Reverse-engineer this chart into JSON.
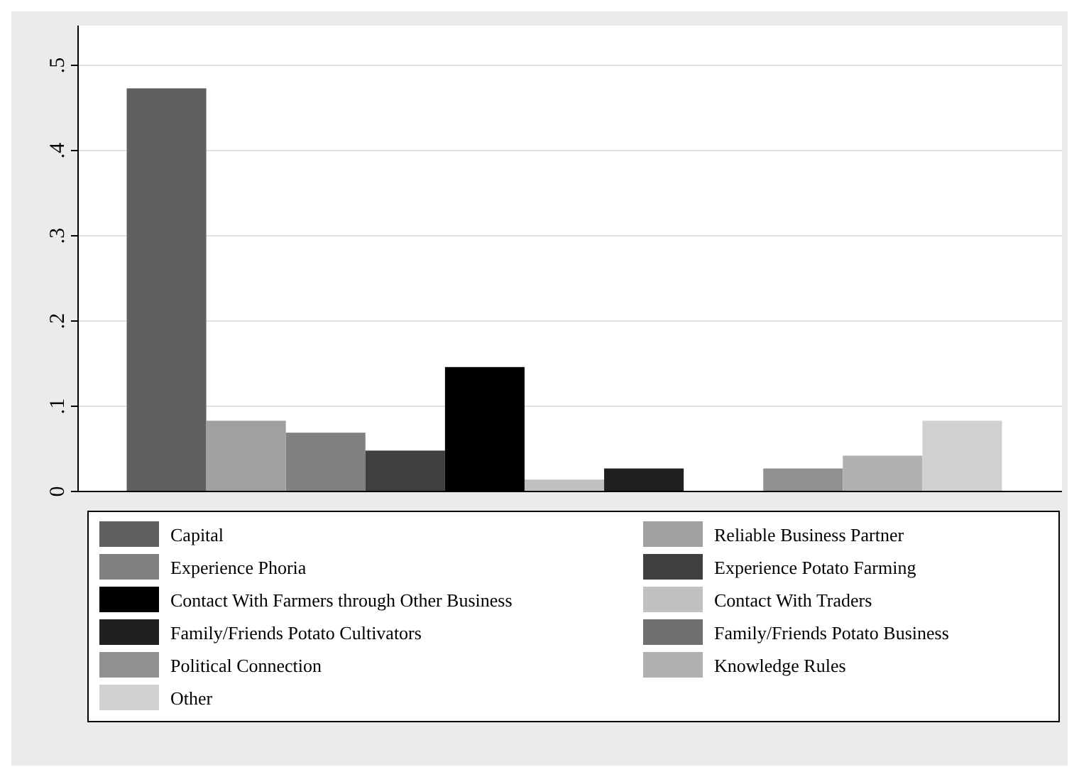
{
  "chart_data": {
    "type": "bar",
    "categories": [
      null
    ],
    "series": [
      {
        "name": "Capital",
        "color": "#606060",
        "values": [
          0.473
        ]
      },
      {
        "name": "Reliable Business Partner",
        "color": "#a0a0a0",
        "values": [
          0.083
        ]
      },
      {
        "name": "Experience Phoria",
        "color": "#808080",
        "values": [
          0.069
        ]
      },
      {
        "name": "Experience Potato Farming",
        "color": "#404040",
        "values": [
          0.048
        ]
      },
      {
        "name": "Contact With Farmers through Other Business",
        "color": "#000000",
        "values": [
          0.146
        ]
      },
      {
        "name": "Contact With Traders",
        "color": "#c0c0c0",
        "values": [
          0.014
        ]
      },
      {
        "name": "Family/Friends Potato Cultivators",
        "color": "#202020",
        "values": [
          0.027
        ]
      },
      {
        "name": "Family/Friends Potato Business",
        "color": "#707070",
        "values": [
          0
        ]
      },
      {
        "name": "Political Connection",
        "color": "#909090",
        "values": [
          0.027
        ]
      },
      {
        "name": "Knowledge Rules",
        "color": "#b0b0b0",
        "values": [
          0.042
        ]
      },
      {
        "name": "Other",
        "color": "#d0d0d0",
        "values": [
          0.083
        ]
      }
    ],
    "ylim": [
      0,
      0.5
    ],
    "yticks": [
      {
        "value": 0,
        "label": "0"
      },
      {
        "value": 0.1,
        "label": ".1"
      },
      {
        "value": 0.2,
        "label": ".2"
      },
      {
        "value": 0.3,
        "label": ".3"
      },
      {
        "value": 0.4,
        "label": ".4"
      },
      {
        "value": 0.5,
        "label": ".5"
      }
    ],
    "grid": "y",
    "legend": "bottom"
  }
}
